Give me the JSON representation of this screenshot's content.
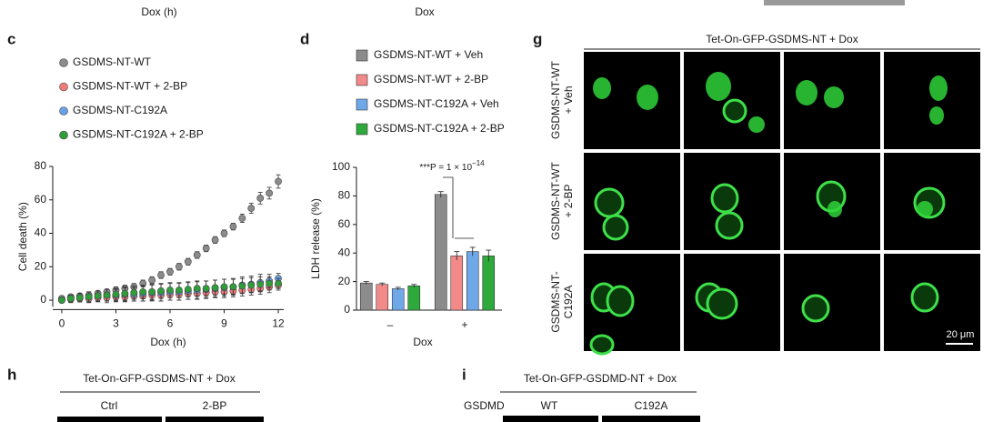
{
  "top_axis_labels": [
    "Dox (h)",
    "Dox"
  ],
  "panel_letters": [
    "c",
    "d",
    "g",
    "h",
    "i"
  ],
  "chart_data": [
    {
      "type": "scatter",
      "xlabel": "Dox (h)",
      "ylabel": "Cell death (%)",
      "x": [
        0,
        0.5,
        1,
        1.5,
        2,
        2.5,
        3,
        3.5,
        4,
        4.5,
        5,
        5.5,
        6,
        6.5,
        7,
        7.5,
        8,
        8.5,
        9,
        9.5,
        10,
        10.5,
        11,
        11.5,
        12
      ],
      "xlim": [
        -0.5,
        12.3
      ],
      "xticks": [
        0,
        3,
        6,
        9,
        12
      ],
      "ylim": [
        -4,
        80
      ],
      "yticks": [
        0,
        20,
        40,
        60,
        80
      ],
      "series": [
        {
          "name": "GSDMS-NT-WT",
          "color": "#8c8c8c",
          "values": [
            1,
            2,
            2.5,
            3,
            4,
            5,
            6,
            7,
            8,
            10,
            12,
            15,
            17,
            20,
            23,
            27,
            31,
            36,
            40,
            44,
            49,
            55,
            61,
            64,
            71
          ],
          "errors": [
            1,
            1,
            1,
            1.5,
            1.5,
            1.5,
            2,
            2,
            2,
            2,
            2,
            2,
            2,
            2,
            2,
            2,
            2,
            2,
            2,
            2,
            2.5,
            3,
            3.5,
            3.5,
            4
          ]
        },
        {
          "name": "GSDMS-NT-WT + 2-BP",
          "color": "#ee7a7a",
          "values": [
            0,
            0.5,
            1,
            1,
            1.5,
            1.5,
            2,
            2,
            2.5,
            2.5,
            3,
            3,
            3.5,
            3.5,
            4,
            4,
            4.5,
            5,
            5,
            5.5,
            6,
            6.5,
            7,
            8,
            9
          ],
          "errors": [
            1.5,
            2,
            2,
            2.5,
            2.5,
            3,
            3,
            3,
            3,
            3,
            3.5,
            3.5,
            3.5,
            3.5,
            3.5,
            3.5,
            3.5,
            3.5,
            3.5,
            3.5,
            3.5,
            3.5,
            3.5,
            3.5,
            3
          ]
        },
        {
          "name": "GSDMS-NT-C192A",
          "color": "#6aa0e6",
          "values": [
            0,
            1,
            1.5,
            2,
            2.5,
            3,
            3,
            3.5,
            3.5,
            4,
            4.5,
            4.5,
            5,
            5,
            5.5,
            6,
            6.5,
            7,
            7.5,
            8,
            9,
            9.5,
            10.5,
            11.5,
            13
          ],
          "errors": [
            1.5,
            2,
            2.5,
            3,
            3,
            3.5,
            3.5,
            4,
            4,
            4.5,
            4.5,
            5,
            5,
            5,
            5,
            5,
            5,
            5,
            5,
            5,
            5,
            5,
            5,
            4,
            3
          ]
        },
        {
          "name": "GSDMS-NT-C192A + 2-BP",
          "color": "#2f9e3a",
          "values": [
            0,
            1,
            1.5,
            2,
            2.5,
            3,
            3.5,
            4,
            4.5,
            5,
            5,
            5.5,
            6,
            6,
            6.5,
            7,
            7,
            7.5,
            8,
            8,
            8.5,
            9,
            9.5,
            10,
            10
          ],
          "errors": [
            1.5,
            2,
            2.5,
            3,
            3,
            3.5,
            3.5,
            4,
            4,
            4,
            4.5,
            4.5,
            4.5,
            4.5,
            4.5,
            4.5,
            4.5,
            4.5,
            4.5,
            4.5,
            4.5,
            4.5,
            4.5,
            4,
            3
          ]
        }
      ]
    },
    {
      "type": "bar",
      "xlabel": "Dox",
      "ylabel": "LDH release (%)",
      "categories": [
        "–",
        "+"
      ],
      "ylim": [
        0,
        100
      ],
      "yticks": [
        0,
        20,
        40,
        60,
        80,
        100
      ],
      "annotation": {
        "text": "***P = 1 × 10",
        "sup": "−14"
      },
      "series": [
        {
          "name": "GSDMS-NT-WT + Veh",
          "color": "#8c8c8c",
          "values": [
            19,
            81
          ],
          "errors": [
            1,
            2
          ]
        },
        {
          "name": "GSDMS-NT-WT + 2-BP",
          "color": "#f28a8a",
          "values": [
            18,
            38
          ],
          "errors": [
            1,
            3
          ]
        },
        {
          "name": "GSDMS-NT-C192A + Veh",
          "color": "#6fa8e8",
          "values": [
            15,
            41
          ],
          "errors": [
            1,
            3
          ]
        },
        {
          "name": "GSDMS-NT-C192A + 2-BP",
          "color": "#2eaa3c",
          "values": [
            17,
            38
          ],
          "errors": [
            1,
            4
          ]
        }
      ]
    }
  ],
  "panel_g": {
    "title": "Tet-On-GFP-GSDMS-NT + Dox",
    "row_labels": [
      [
        "GSDMS-NT-WT",
        "+ Veh"
      ],
      [
        "GSDMS-NT-WT",
        "+ 2-BP"
      ],
      [
        "GSDMS-NT-",
        "C192A"
      ]
    ],
    "scale_bar": "20 μm"
  },
  "panel_h": {
    "title": "Tet-On-GFP-GSDMS-NT + Dox",
    "columns": [
      "Ctrl",
      "2-BP"
    ]
  },
  "panel_i": {
    "title": "Tet-On-GFP-GSDMD-NT + Dox",
    "row_label": "GSDMD",
    "columns": [
      "WT",
      "C192A"
    ]
  }
}
